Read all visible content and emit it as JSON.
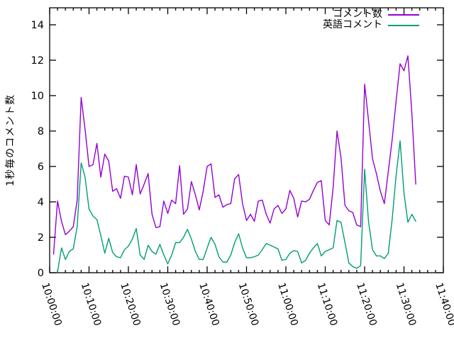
{
  "app": {
    "background_color": "#ffffff",
    "axis_color": "#000000"
  },
  "chart_data": {
    "type": "line",
    "title": "",
    "xlabel": "",
    "ylabel": "1秒毎のコメント数",
    "grid": false,
    "legend": {
      "position": "top-right",
      "entries": [
        "コメント数",
        "英語コメント"
      ]
    },
    "x_axis": {
      "start_label": "10:00:00",
      "end_label": "11:40:00",
      "total_minutes": 100,
      "major_tick_minutes": 10,
      "minor_tick_minutes": 2,
      "tick_labels": [
        "10:00:00",
        "10:10:00",
        "10:20:00",
        "10:30:00",
        "10:40:00",
        "10:50:00",
        "11:00:00",
        "11:10:00",
        "11:20:00",
        "11:30:00",
        "11:40:00"
      ]
    },
    "y_axis": {
      "min": 0,
      "max": 14.96,
      "ticks": [
        0,
        2,
        4,
        6,
        8,
        10,
        12,
        14
      ]
    },
    "series": [
      {
        "name": "コメント数",
        "color": "#9400d3",
        "x_unit": "minutes after 10:00:00",
        "points": [
          [
            1,
            1.05
          ],
          [
            2,
            4.05
          ],
          [
            3,
            2.9
          ],
          [
            4,
            2.15
          ],
          [
            5,
            2.35
          ],
          [
            6,
            2.6
          ],
          [
            7,
            4.1
          ],
          [
            8,
            9.9
          ],
          [
            9,
            8.1
          ],
          [
            10,
            6.0
          ],
          [
            11,
            6.1
          ],
          [
            12,
            7.3
          ],
          [
            13,
            5.4
          ],
          [
            14,
            6.7
          ],
          [
            15,
            6.3
          ],
          [
            16,
            4.6
          ],
          [
            17,
            4.75
          ],
          [
            18,
            4.2
          ],
          [
            19,
            5.45
          ],
          [
            20,
            5.4
          ],
          [
            21,
            4.4
          ],
          [
            22,
            6.1
          ],
          [
            23,
            4.45
          ],
          [
            24,
            5.0
          ],
          [
            25,
            5.6
          ],
          [
            26,
            3.3
          ],
          [
            27,
            2.55
          ],
          [
            28,
            2.6
          ],
          [
            29,
            4.05
          ],
          [
            30,
            3.35
          ],
          [
            31,
            4.1
          ],
          [
            32,
            3.9
          ],
          [
            33,
            6.05
          ],
          [
            34,
            3.3
          ],
          [
            35,
            3.6
          ],
          [
            36,
            5.15
          ],
          [
            37,
            4.4
          ],
          [
            38,
            3.55
          ],
          [
            39,
            4.6
          ],
          [
            40,
            6.0
          ],
          [
            41,
            6.15
          ],
          [
            42,
            4.25
          ],
          [
            43,
            4.4
          ],
          [
            44,
            3.7
          ],
          [
            45,
            3.85
          ],
          [
            46,
            3.9
          ],
          [
            47,
            5.3
          ],
          [
            48,
            5.55
          ],
          [
            49,
            3.9
          ],
          [
            50,
            2.95
          ],
          [
            51,
            3.3
          ],
          [
            52,
            2.9
          ],
          [
            53,
            4.05
          ],
          [
            54,
            4.1
          ],
          [
            55,
            3.3
          ],
          [
            56,
            2.8
          ],
          [
            57,
            3.6
          ],
          [
            58,
            3.8
          ],
          [
            59,
            3.35
          ],
          [
            60,
            3.6
          ],
          [
            61,
            4.65
          ],
          [
            62,
            4.2
          ],
          [
            63,
            3.15
          ],
          [
            64,
            4.05
          ],
          [
            65,
            4.0
          ],
          [
            66,
            4.15
          ],
          [
            67,
            4.65
          ],
          [
            68,
            5.1
          ],
          [
            69,
            5.2
          ],
          [
            70,
            2.95
          ],
          [
            71,
            2.7
          ],
          [
            72,
            4.8
          ],
          [
            73,
            8.0
          ],
          [
            74,
            6.5
          ],
          [
            75,
            3.8
          ],
          [
            76,
            3.5
          ],
          [
            77,
            3.4
          ],
          [
            78,
            2.7
          ],
          [
            79,
            2.6
          ],
          [
            80,
            10.65
          ],
          [
            81,
            8.6
          ],
          [
            82,
            6.45
          ],
          [
            83,
            5.6
          ],
          [
            84,
            4.6
          ],
          [
            85,
            3.9
          ],
          [
            86,
            5.7
          ],
          [
            87,
            7.5
          ],
          [
            88,
            9.7
          ],
          [
            89,
            11.8
          ],
          [
            90,
            11.4
          ],
          [
            91,
            12.25
          ],
          [
            92,
            9.0
          ],
          [
            93,
            5.0
          ]
        ]
      },
      {
        "name": "英語コメント",
        "color": "#009e73",
        "x_unit": "minutes after 10:00:00",
        "points": [
          [
            2,
            0.05
          ],
          [
            3,
            1.4
          ],
          [
            4,
            0.75
          ],
          [
            5,
            1.2
          ],
          [
            6,
            1.35
          ],
          [
            7,
            2.6
          ],
          [
            8,
            6.2
          ],
          [
            9,
            5.4
          ],
          [
            10,
            3.6
          ],
          [
            11,
            3.2
          ],
          [
            12,
            3.0
          ],
          [
            13,
            2.1
          ],
          [
            14,
            1.1
          ],
          [
            15,
            1.95
          ],
          [
            16,
            1.15
          ],
          [
            17,
            0.9
          ],
          [
            18,
            0.85
          ],
          [
            19,
            1.3
          ],
          [
            20,
            1.5
          ],
          [
            21,
            1.9
          ],
          [
            22,
            2.5
          ],
          [
            23,
            1.0
          ],
          [
            24,
            0.75
          ],
          [
            25,
            1.55
          ],
          [
            26,
            1.2
          ],
          [
            27,
            1.05
          ],
          [
            28,
            1.6
          ],
          [
            29,
            1.0
          ],
          [
            30,
            0.5
          ],
          [
            31,
            1.0
          ],
          [
            32,
            1.7
          ],
          [
            33,
            1.7
          ],
          [
            34,
            2.0
          ],
          [
            35,
            2.45
          ],
          [
            36,
            1.9
          ],
          [
            37,
            1.2
          ],
          [
            38,
            0.75
          ],
          [
            39,
            0.75
          ],
          [
            40,
            1.4
          ],
          [
            41,
            2.0
          ],
          [
            42,
            1.6
          ],
          [
            43,
            0.9
          ],
          [
            44,
            0.6
          ],
          [
            45,
            0.6
          ],
          [
            46,
            1.0
          ],
          [
            47,
            1.7
          ],
          [
            48,
            2.2
          ],
          [
            49,
            1.4
          ],
          [
            50,
            0.85
          ],
          [
            51,
            0.85
          ],
          [
            52,
            0.9
          ],
          [
            53,
            1.0
          ],
          [
            54,
            1.3
          ],
          [
            55,
            1.65
          ],
          [
            56,
            1.55
          ],
          [
            57,
            1.45
          ],
          [
            58,
            1.35
          ],
          [
            59,
            0.7
          ],
          [
            60,
            0.75
          ],
          [
            61,
            1.1
          ],
          [
            62,
            1.25
          ],
          [
            63,
            1.2
          ],
          [
            64,
            0.55
          ],
          [
            65,
            0.7
          ],
          [
            66,
            1.1
          ],
          [
            67,
            1.4
          ],
          [
            68,
            1.65
          ],
          [
            69,
            0.95
          ],
          [
            70,
            1.2
          ],
          [
            71,
            1.3
          ],
          [
            72,
            1.4
          ],
          [
            73,
            2.95
          ],
          [
            74,
            2.85
          ],
          [
            75,
            1.7
          ],
          [
            76,
            0.55
          ],
          [
            77,
            0.35
          ],
          [
            78,
            0.25
          ],
          [
            79,
            0.4
          ],
          [
            80,
            5.85
          ],
          [
            81,
            2.9
          ],
          [
            82,
            1.3
          ],
          [
            83,
            0.95
          ],
          [
            84,
            0.95
          ],
          [
            85,
            0.8
          ],
          [
            86,
            1.1
          ],
          [
            87,
            3.0
          ],
          [
            88,
            5.5
          ],
          [
            89,
            7.45
          ],
          [
            90,
            4.5
          ],
          [
            91,
            2.85
          ],
          [
            92,
            3.3
          ],
          [
            93,
            2.9
          ]
        ]
      }
    ]
  }
}
